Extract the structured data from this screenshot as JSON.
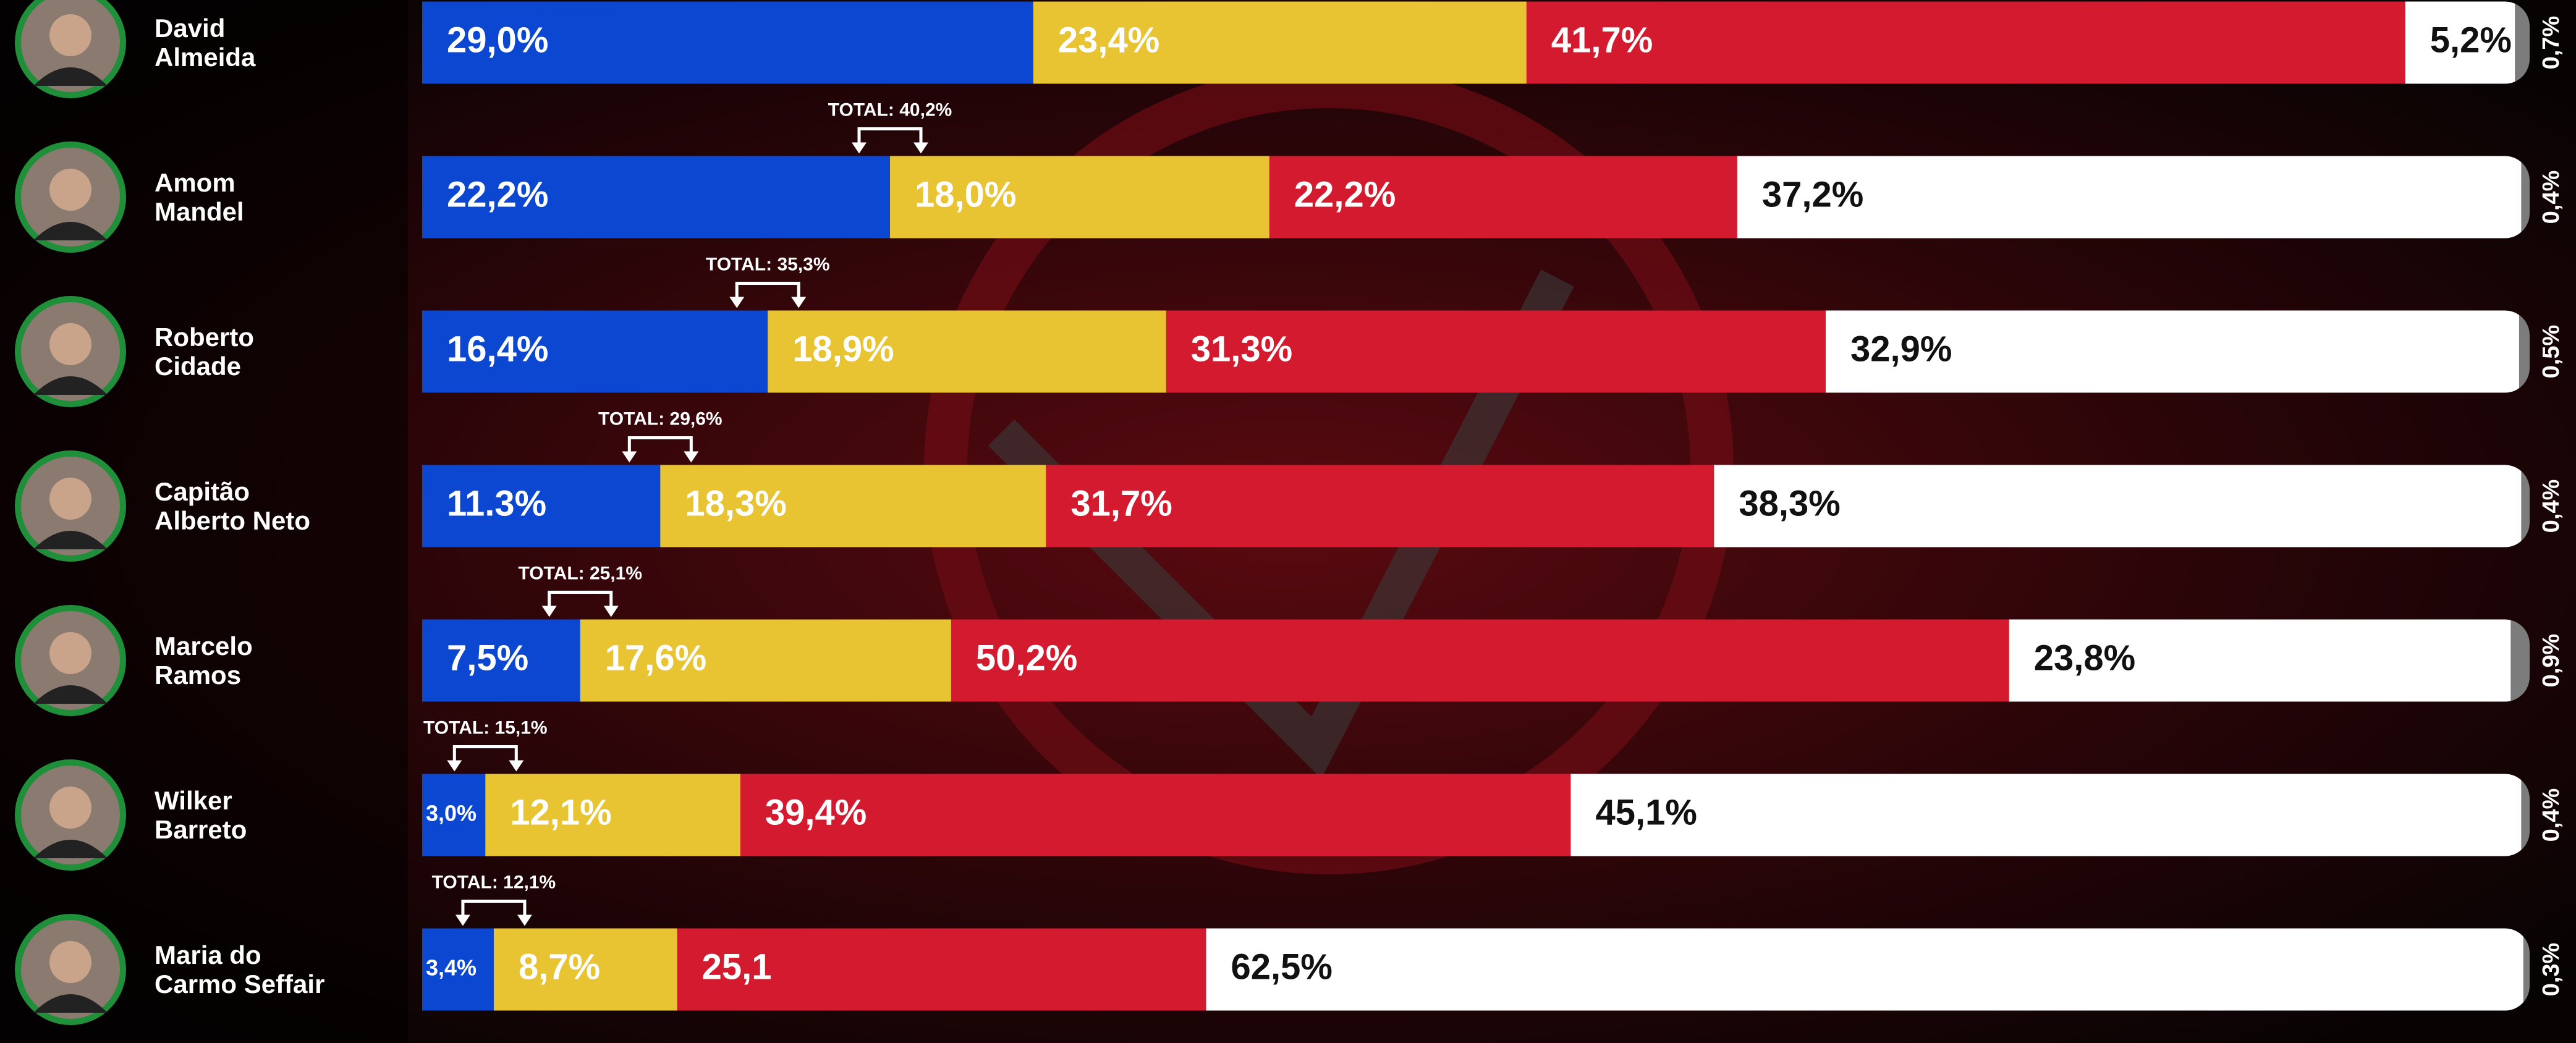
{
  "chart_data": {
    "type": "bar",
    "orientation": "horizontal",
    "stacked": true,
    "categories": [
      "David\nAlmeida",
      "Amom\nMandel",
      "Roberto\nCidade",
      "Capitão\nAlberto Neto",
      "Marcelo\nRamos",
      "Wilker\nBarreto",
      "Maria do\nCarmo Seffair"
    ],
    "totals": [
      null,
      "TOTAL: 40,2%",
      "TOTAL: 35,3%",
      "TOTAL: 29,6%",
      "TOTAL: 25,1%",
      "TOTAL: 15,1%",
      "TOTAL: 12,1%"
    ],
    "series": [
      {
        "color": "#0b47d1",
        "values": [
          29.0,
          22.2,
          16.4,
          11.3,
          7.5,
          3.0,
          3.4
        ],
        "value_labels": [
          "29,0%",
          "22,2%",
          "16,4%",
          "11.3%",
          "7,5%",
          "3,0%",
          "3,4%"
        ]
      },
      {
        "color": "#e8c332",
        "values": [
          23.4,
          18.0,
          18.9,
          18.3,
          17.6,
          12.1,
          8.7
        ],
        "value_labels": [
          "23,4%",
          "18,0%",
          "18,9%",
          "18,3%",
          "17,6%",
          "12,1%",
          "8,7%"
        ]
      },
      {
        "color": "#d41a2e",
        "values": [
          41.7,
          22.2,
          31.3,
          31.7,
          50.2,
          39.4,
          25.1
        ],
        "value_labels": [
          "41,7%",
          "22,2%",
          "31,3%",
          "31,7%",
          "50,2%",
          "39,4%",
          "25,1"
        ]
      },
      {
        "color": "#ffffff",
        "values": [
          5.2,
          37.2,
          32.9,
          38.3,
          23.8,
          45.1,
          62.5
        ],
        "value_labels": [
          "5,2%",
          "37,2%",
          "32,9%",
          "38,3%",
          "23,8%",
          "45,1%",
          "62,5%"
        ]
      },
      {
        "color": "#7c7c7c",
        "values": [
          0.7,
          0.4,
          0.5,
          0.4,
          0.9,
          0.4,
          0.3
        ],
        "value_labels": [
          "0,7%",
          "0,4%",
          "0,5%",
          "0,4%",
          "0,9%",
          "0,4%",
          "0,3%"
        ]
      }
    ]
  }
}
